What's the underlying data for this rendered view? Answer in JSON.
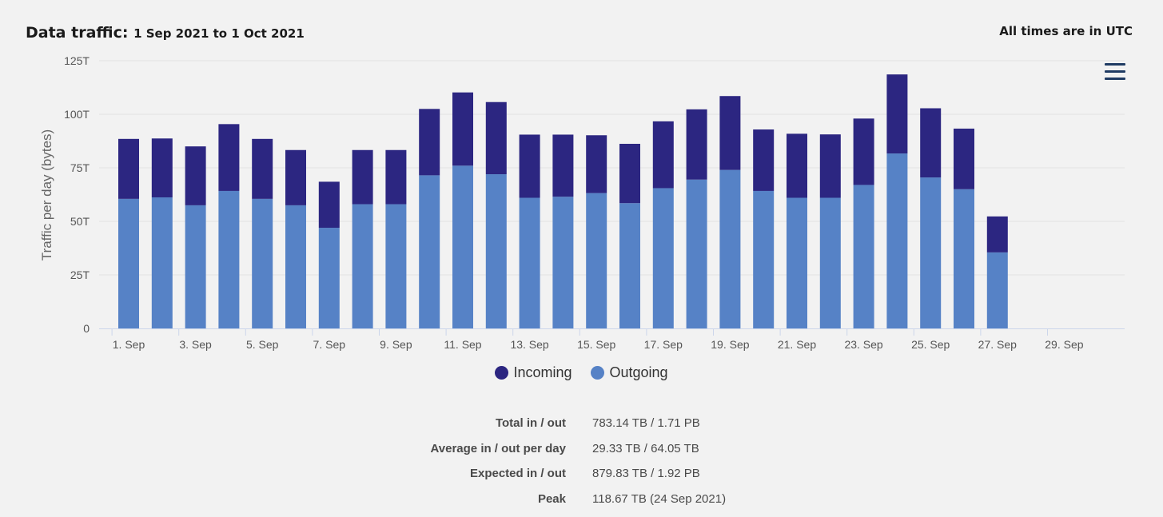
{
  "header": {
    "title": "Data traffic:",
    "date_range": "1 Sep 2021 to 1 Oct 2021",
    "timezone_note": "All times are in UTC"
  },
  "menu": {
    "icon": "hamburger-menu-icon"
  },
  "colors": {
    "incoming": "#2c2681",
    "outgoing": "#5682c6",
    "grid": "#e3e3e3",
    "axis": "#ccd6eb",
    "menu_icon": "#1f3b63"
  },
  "chart_data": {
    "type": "bar",
    "stacked": true,
    "title": "",
    "xlabel": "",
    "ylabel": "Traffic per day (bytes)",
    "ylim": [
      0,
      125
    ],
    "y_ticks": [
      0,
      25,
      50,
      75,
      100,
      125
    ],
    "y_tick_labels": [
      "0",
      "25T",
      "50T",
      "75T",
      "100T",
      "125T"
    ],
    "categories": [
      "1 Sep",
      "2 Sep",
      "3 Sep",
      "4 Sep",
      "5 Sep",
      "6 Sep",
      "7 Sep",
      "8 Sep",
      "9 Sep",
      "10 Sep",
      "11 Sep",
      "12 Sep",
      "13 Sep",
      "14 Sep",
      "15 Sep",
      "16 Sep",
      "17 Sep",
      "18 Sep",
      "19 Sep",
      "20 Sep",
      "21 Sep",
      "22 Sep",
      "23 Sep",
      "24 Sep",
      "25 Sep",
      "26 Sep",
      "27 Sep",
      "28 Sep",
      "29 Sep",
      "30 Sep"
    ],
    "x_tick_labels": [
      "1. Sep",
      "3. Sep",
      "5. Sep",
      "7. Sep",
      "9. Sep",
      "11. Sep",
      "13. Sep",
      "15. Sep",
      "17. Sep",
      "19. Sep",
      "21. Sep",
      "23. Sep",
      "25. Sep",
      "27. Sep",
      "29. Sep"
    ],
    "series": [
      {
        "name": "Outgoing",
        "values": [
          60.5,
          61.2,
          57.5,
          64.2,
          60.5,
          57.5,
          47.0,
          58.0,
          58.0,
          71.5,
          76.0,
          72.0,
          61.0,
          61.5,
          63.2,
          58.5,
          65.5,
          69.5,
          74.0,
          64.2,
          61.0,
          61.0,
          67.0,
          81.7,
          70.5,
          65.0,
          35.5,
          0,
          0,
          0
        ]
      },
      {
        "name": "Incoming",
        "values": [
          28.0,
          27.5,
          27.5,
          31.2,
          28.0,
          25.8,
          21.5,
          25.3,
          25.3,
          31.0,
          34.2,
          33.7,
          29.5,
          29.0,
          27.0,
          27.7,
          31.2,
          32.8,
          34.5,
          28.7,
          29.9,
          29.6,
          31.0,
          36.9,
          32.3,
          28.3,
          16.8,
          0,
          0,
          0
        ]
      }
    ]
  },
  "legend": [
    {
      "name": "Incoming",
      "icon": "incoming-legend-dot"
    },
    {
      "name": "Outgoing",
      "icon": "outgoing-legend-dot"
    }
  ],
  "summary": [
    {
      "label": "Total in / out",
      "value": "783.14 TB / 1.71 PB"
    },
    {
      "label": "Average in / out per day",
      "value": "29.33 TB / 64.05 TB"
    },
    {
      "label": "Expected in / out",
      "value": "879.83 TB / 1.92 PB"
    },
    {
      "label": "Peak",
      "value": "118.67 TB (24 Sep 2021)"
    }
  ]
}
